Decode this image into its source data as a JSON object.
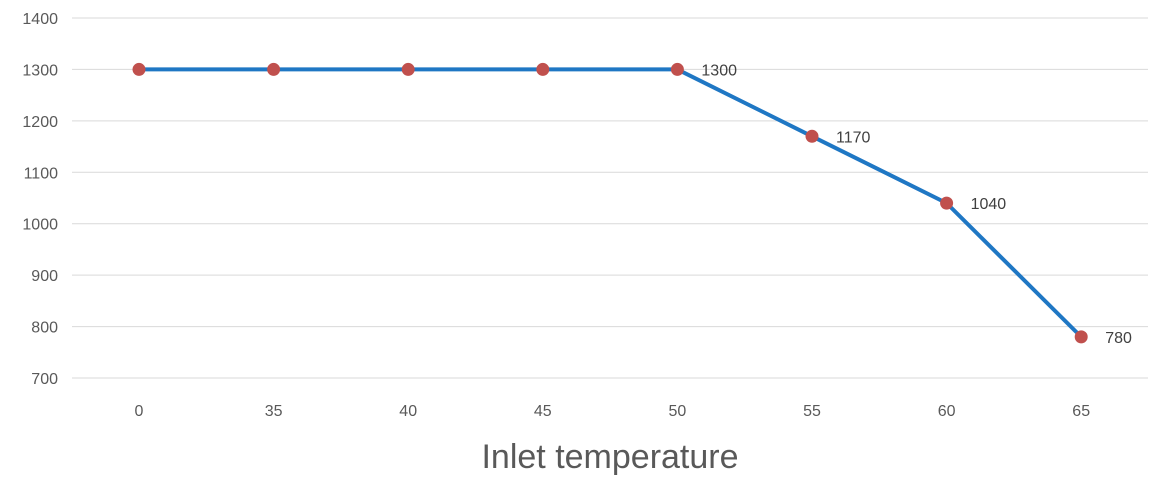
{
  "chart_data": {
    "type": "line",
    "categories": [
      "0",
      "35",
      "40",
      "45",
      "50",
      "55",
      "60",
      "65"
    ],
    "series": [
      {
        "values": [
          1300,
          1300,
          1300,
          1300,
          1300,
          1170,
          1040,
          780
        ],
        "line_color": "#1f77c4",
        "marker_color": "#c0504d"
      }
    ],
    "data_labels": [
      "",
      "",
      "",
      "",
      "1300",
      "1170",
      "1040",
      "780"
    ],
    "xlabel": "Inlet temperature",
    "ylabel": "",
    "ylim": [
      700,
      1400
    ],
    "yticks": [
      "700",
      "800",
      "900",
      "1000",
      "1100",
      "1200",
      "1300",
      "1400"
    ],
    "grid": true,
    "legend": "none"
  }
}
